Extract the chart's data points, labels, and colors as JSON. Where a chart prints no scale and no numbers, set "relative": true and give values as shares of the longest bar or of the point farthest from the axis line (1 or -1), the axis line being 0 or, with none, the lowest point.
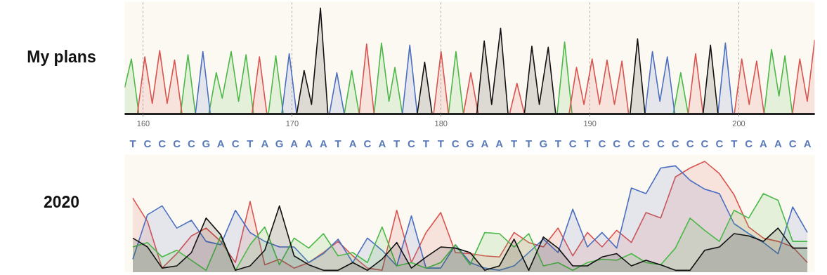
{
  "chart_data": [
    {
      "type": "area",
      "title": "My plans",
      "relative": true,
      "xlim": [
        158.75,
        205.1
      ],
      "xticks": [
        160,
        170,
        180,
        190,
        200
      ],
      "grid": "x",
      "series": [
        {
          "color": "#4cb848",
          "x": [
            158.75,
            159.2,
            159.7,
            162.5,
            163.0,
            163.5,
            164.4,
            164.9,
            165.3,
            165.9,
            166.4,
            166.9,
            167.4,
            168.4,
            168.9,
            169.4,
            173.5,
            174.0,
            174.5,
            175.5,
            176.0,
            176.5,
            176.9,
            177.4,
            180.5,
            181.0,
            181.5,
            187.8,
            188.3,
            188.8,
            195.6,
            196.1,
            196.6,
            201.7,
            202.2,
            202.7,
            203.1,
            203.6,
            205.1
          ],
          "values": [
            0.25,
            0.52,
            0,
            0,
            0.56,
            0,
            0,
            0.39,
            0.15,
            0.59,
            0.12,
            0.56,
            0,
            0,
            0.55,
            0,
            0,
            0.41,
            0,
            0,
            0.67,
            0.12,
            0.44,
            0,
            0,
            0.59,
            0,
            0,
            0.68,
            0,
            0,
            0.39,
            0,
            0,
            0.61,
            0.17,
            0.55,
            0,
            0
          ]
        },
        {
          "color": "#d9534f",
          "x": [
            158.75,
            159.6,
            160.1,
            160.6,
            161.1,
            161.6,
            162.1,
            162.6,
            167.3,
            167.8,
            168.3,
            174.5,
            175.0,
            175.5,
            179.5,
            180.0,
            180.5,
            181.5,
            182.0,
            182.5,
            184.6,
            185.1,
            185.6,
            188.6,
            189.1,
            189.6,
            190.15,
            190.65,
            191.15,
            191.65,
            192.15,
            192.6,
            196.6,
            197.1,
            197.6,
            199.7,
            200.2,
            200.7,
            201.2,
            201.7,
            203.6,
            204.1,
            204.6,
            205.1
          ],
          "values": [
            0,
            0,
            0.54,
            0.1,
            0.6,
            0.1,
            0.51,
            0,
            0,
            0.54,
            0,
            0,
            0.66,
            0,
            0,
            0.59,
            0,
            0,
            0.39,
            0,
            0,
            0.29,
            0,
            0,
            0.44,
            0.09,
            0.52,
            0.09,
            0.51,
            0.09,
            0.5,
            0,
            0,
            0.57,
            0,
            0,
            0.52,
            0.09,
            0.5,
            0,
            0,
            0.52,
            0.12,
            0.7
          ]
        },
        {
          "color": "#4a6fc1",
          "x": [
            158.75,
            163.5,
            164.0,
            164.5,
            169.3,
            169.8,
            170.3,
            172.5,
            173.0,
            173.5,
            177.4,
            177.9,
            178.4,
            193.7,
            194.2,
            194.7,
            195.2,
            195.7,
            198.6,
            199.1,
            199.6,
            205.1
          ],
          "values": [
            0,
            0,
            0.59,
            0,
            0,
            0.57,
            0,
            0,
            0.39,
            0,
            0,
            0.65,
            0,
            0,
            0.59,
            0.12,
            0.54,
            0,
            0,
            0.67,
            0,
            0
          ]
        },
        {
          "color": "#111111",
          "x": [
            158.75,
            170.3,
            170.8,
            171.3,
            171.9,
            172.4,
            178.4,
            178.9,
            179.4,
            182.4,
            182.9,
            183.4,
            184.0,
            184.5,
            185.6,
            186.1,
            186.6,
            187.2,
            187.7,
            192.7,
            193.2,
            193.7,
            197.6,
            198.1,
            198.6,
            205.1
          ],
          "values": [
            0,
            0,
            0.41,
            0.09,
            1.0,
            0,
            0,
            0.49,
            0,
            0,
            0.69,
            0.09,
            0.81,
            0,
            0,
            0.64,
            0.09,
            0.63,
            0,
            0,
            0.71,
            0,
            0,
            0.65,
            0,
            0
          ]
        }
      ]
    },
    {
      "type": "area",
      "title": "2020",
      "relative": true,
      "categories": [
        "T",
        "C",
        "C",
        "C",
        "C",
        "G",
        "A",
        "C",
        "T",
        "A",
        "G",
        "A",
        "A",
        "A",
        "T",
        "A",
        "C",
        "A",
        "T",
        "C",
        "T",
        "T",
        "C",
        "G",
        "A",
        "A",
        "T",
        "T",
        "G",
        "T",
        "C",
        "T",
        "C",
        "C",
        "C",
        "C",
        "C",
        "C",
        "C",
        "C",
        "C",
        "T",
        "C",
        "A",
        "A",
        "C",
        "A"
      ],
      "series": [
        {
          "color": "#d9534f",
          "values": [
            0.67,
            0.46,
            0.04,
            0.17,
            0.33,
            0.4,
            0.28,
            0.09,
            0.64,
            0.07,
            0.12,
            0.04,
            0.09,
            0.18,
            0.28,
            0.15,
            0.04,
            0.02,
            0.56,
            0.09,
            0.36,
            0.54,
            0.18,
            0.17,
            0.15,
            0.14,
            0.36,
            0.27,
            0.23,
            0.4,
            0.15,
            0.36,
            0.23,
            0.38,
            0.27,
            0.54,
            0.49,
            0.86,
            0.94,
            1.0,
            0.89,
            0.7,
            0.41,
            0.31,
            0.28,
            0.23,
            0.09
          ]
        },
        {
          "color": "#4a6fc1",
          "values": [
            0.12,
            0.52,
            0.6,
            0.4,
            0.47,
            0.28,
            0.25,
            0.56,
            0.36,
            0.28,
            0.23,
            0.23,
            0.09,
            0.17,
            0.3,
            0.09,
            0.31,
            0.2,
            0.06,
            0.51,
            0.04,
            0.04,
            0.25,
            0.09,
            0.04,
            0.02,
            0.06,
            0.18,
            0.3,
            0.18,
            0.57,
            0.23,
            0.36,
            0.22,
            0.76,
            0.71,
            0.94,
            0.96,
            0.83,
            0.75,
            0.71,
            0.44,
            0.35,
            0.27,
            0.17,
            0.59,
            0.36
          ]
        },
        {
          "color": "#4cb848",
          "values": [
            0.23,
            0.27,
            0.14,
            0.2,
            0.11,
            0.02,
            0.33,
            0.02,
            0.25,
            0.41,
            0.07,
            0.31,
            0.22,
            0.35,
            0.15,
            0.18,
            0.09,
            0.41,
            0.06,
            0.09,
            0.04,
            0.09,
            0.25,
            0.07,
            0.36,
            0.35,
            0.23,
            0.35,
            0.06,
            0.09,
            0.02,
            0.09,
            0.12,
            0.11,
            0.17,
            0.09,
            0.07,
            0.22,
            0.49,
            0.38,
            0.28,
            0.56,
            0.49,
            0.71,
            0.65,
            0.28,
            0.28
          ]
        },
        {
          "color": "#111111",
          "values": [
            0.31,
            0.23,
            0.04,
            0.06,
            0.18,
            0.49,
            0.34,
            0.02,
            0.06,
            0.2,
            0.6,
            0.15,
            0.07,
            0.02,
            0.02,
            0.09,
            0.02,
            0.12,
            0.27,
            0.04,
            0.14,
            0.23,
            0.22,
            0.18,
            0.02,
            0.06,
            0.3,
            0.02,
            0.32,
            0.22,
            0.06,
            0.06,
            0.14,
            0.17,
            0.06,
            0.11,
            0.07,
            0.02,
            0.02,
            0.2,
            0.23,
            0.35,
            0.33,
            0.28,
            0.4,
            0.22,
            0.22
          ]
        }
      ]
    }
  ]
}
